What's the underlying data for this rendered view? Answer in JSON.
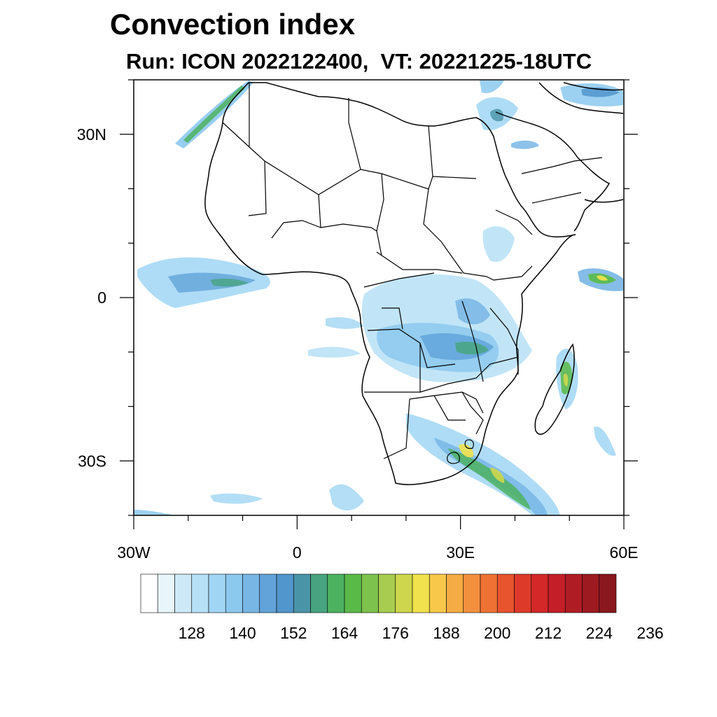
{
  "title": "Convection index",
  "subtitle": "Run: ICON 2022122400,  VT: 20221225-18UTC",
  "map": {
    "region": "Africa",
    "lon_range": [
      -30,
      60
    ],
    "lat_range": [
      -40,
      40
    ],
    "lon_ticks": [
      {
        "value": -30,
        "label": "30W"
      },
      {
        "value": 0,
        "label": "0"
      },
      {
        "value": 30,
        "label": "30E"
      },
      {
        "value": 60,
        "label": "60E"
      }
    ],
    "lat_ticks": [
      {
        "value": 30,
        "label": "30N"
      },
      {
        "value": 0,
        "label": "0"
      },
      {
        "value": -30,
        "label": "30S"
      }
    ]
  },
  "colorbar": {
    "colors": [
      "#ffffff",
      "#e8f5fb",
      "#cde9f7",
      "#b6e0f6",
      "#a0d6f4",
      "#8cc9ef",
      "#78b6e5",
      "#62a4da",
      "#5196cc",
      "#4a94a8",
      "#48a480",
      "#4cb260",
      "#5aba48",
      "#7cc24c",
      "#a8cc50",
      "#cdd64c",
      "#efe24c",
      "#f8c84a",
      "#f5ac44",
      "#f3903e",
      "#ee7234",
      "#e8542e",
      "#de3a2a",
      "#d42828",
      "#c41f28",
      "#b01c24",
      "#9c1a20",
      "#8a181e"
    ],
    "labels": [
      "128",
      "140",
      "152",
      "164",
      "176",
      "188",
      "200",
      "212",
      "224",
      "236"
    ]
  }
}
